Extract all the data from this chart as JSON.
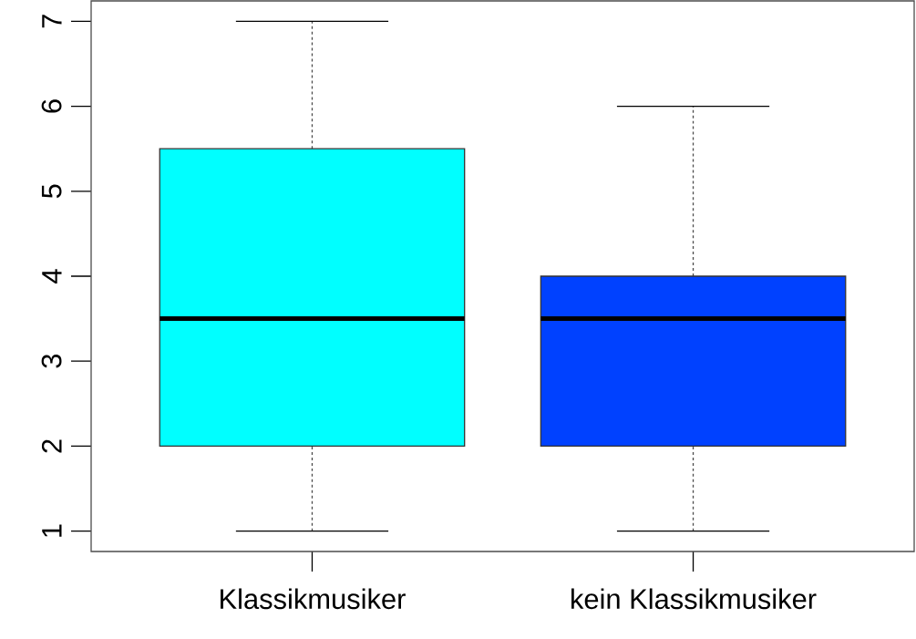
{
  "chart_data": {
    "type": "box",
    "categories": [
      "Klassikmusiker",
      "kein Klassikmusiker"
    ],
    "boxes": [
      {
        "low": 1,
        "q1": 2,
        "median": 3.5,
        "q3": 5.5,
        "high": 7
      },
      {
        "low": 1,
        "q1": 2,
        "median": 3.5,
        "q3": 4,
        "high": 6
      }
    ],
    "colors": [
      "#00ffff",
      "#0041ff"
    ],
    "ylim": [
      0.76,
      7.24
    ],
    "yticks": [
      1,
      2,
      3,
      4,
      5,
      6,
      7
    ],
    "grid": false,
    "line_style": "dashed"
  }
}
